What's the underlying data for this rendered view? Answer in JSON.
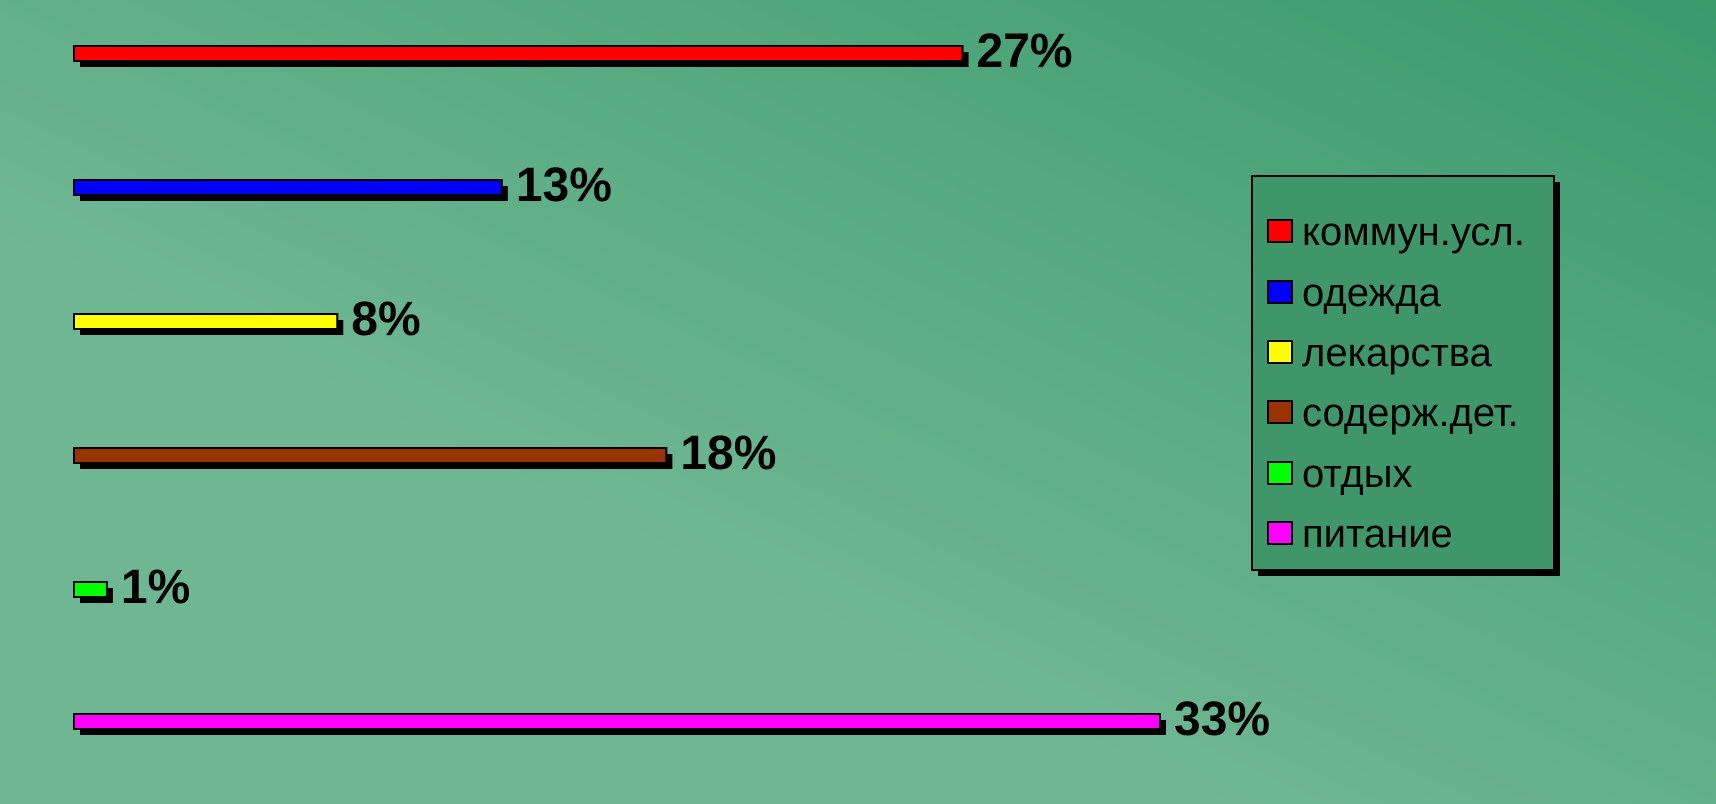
{
  "chart_data": {
    "type": "bar",
    "orientation": "horizontal",
    "categories": [
      "коммун.усл.",
      "одежда",
      "лекарства",
      "содерж.дет.",
      "отдых",
      "питание"
    ],
    "values": [
      27,
      13,
      8,
      18,
      1,
      33
    ],
    "value_labels": [
      "27%",
      "13%",
      "8%",
      "18%",
      "1%",
      "33%"
    ],
    "colors": [
      "#ff0000",
      "#0000ff",
      "#ffff00",
      "#993300",
      "#00ff00",
      "#ff00ff"
    ],
    "xlim": [
      0,
      33
    ],
    "grid": false,
    "axes_visible": false,
    "legend_position": "right",
    "background_gradient": [
      "#6fb793",
      "#3a9a6a"
    ]
  }
}
